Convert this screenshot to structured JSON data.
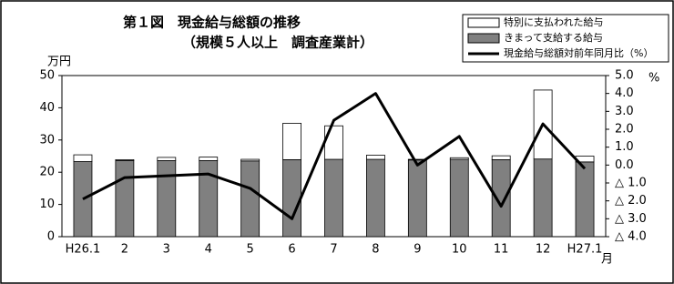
{
  "chart_data": {
    "type": "combo",
    "title": "第１図　現金給与総額の推移",
    "subtitle": "（規模５人以上　調査産業計）",
    "y_unit": "万円",
    "y2_unit": "%",
    "x_unit": "月",
    "categories": [
      "H26.1",
      "2",
      "3",
      "4",
      "5",
      "6",
      "7",
      "8",
      "9",
      "10",
      "11",
      "12",
      "H27.1"
    ],
    "series": [
      {
        "name": "きまって支給する給与",
        "color": "#808080",
        "values": [
          23.3,
          23.6,
          23.6,
          23.6,
          23.5,
          23.9,
          24.0,
          24.0,
          23.8,
          24.0,
          23.9,
          24.1,
          23.2
        ]
      },
      {
        "name": "特別に支払われた給与",
        "color": "#ffffff",
        "values": [
          2.1,
          0.3,
          1.0,
          1.1,
          0.5,
          11.3,
          10.4,
          1.3,
          0.2,
          0.5,
          1.2,
          21.4,
          1.8
        ]
      },
      {
        "name": "現金給与総額対前年同月比（%）",
        "color": "#000000",
        "axis": "y2",
        "values": [
          -1.9,
          -0.7,
          -0.6,
          -0.5,
          -1.3,
          -3.0,
          2.5,
          4.0,
          0.0,
          1.6,
          -2.3,
          2.3,
          -0.2
        ]
      }
    ],
    "ylim": [
      0,
      50
    ],
    "yticks": [
      0,
      10,
      20,
      30,
      40,
      50
    ],
    "y2lim": [
      -4,
      5
    ],
    "y2ticks": [
      {
        "value": 5,
        "label": "5.0"
      },
      {
        "value": 4,
        "label": "4.0"
      },
      {
        "value": 3,
        "label": "3.0"
      },
      {
        "value": 2,
        "label": "2.0"
      },
      {
        "value": 1,
        "label": "1.0"
      },
      {
        "value": 0,
        "label": "0.0"
      },
      {
        "value": -1,
        "label": "△ 1.0"
      },
      {
        "value": -2,
        "label": "△ 2.0"
      },
      {
        "value": -3,
        "label": "△ 3.0"
      },
      {
        "value": -4,
        "label": "△ 4.0"
      }
    ]
  }
}
